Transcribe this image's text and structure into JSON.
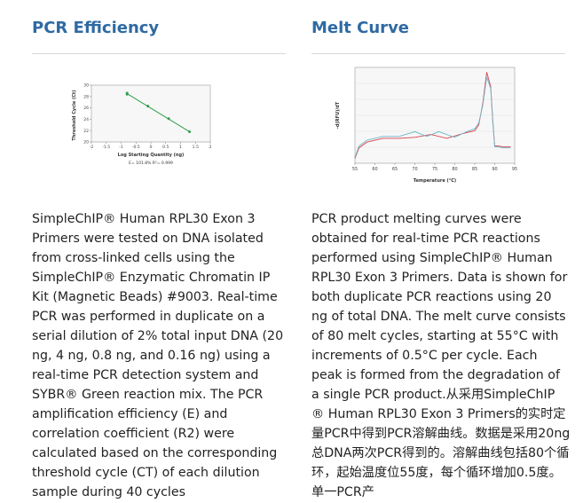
{
  "left": {
    "heading": "PCR Efficiency",
    "body": "SimpleChIP® Human RPL30 Exon 3 Primers were tested on DNA isolated from cross-linked cells using the SimpleChIP® Enzymatic Chromatin IP Kit (Magnetic Beads) #9003. Real-time PCR was performed in duplicate on a serial dilution of 2% total input DNA (20 ng, 4 ng, 0.8 ng, and 0.16 ng) using a real-time PCR detection system and SYBR® Green reaction mix. The PCR amplification efficiency (E) and correlation coefficient (R2) were calculated based on the corresponding threshold cycle (CT) of each dilution sample during 40 cycles"
  },
  "right": {
    "heading": "Melt Curve",
    "body": "PCR product melting curves were obtained for real-time PCR reactions performed using SimpleChIP® Human RPL30 Exon 3 Primers. Data is shown for both duplicate PCR reactions using 20 ng of total DNA. The melt curve consists of 80 melt cycles, starting at 55°C with increments of 0.5°C per cycle. Each peak is formed from the degradation of a single PCR product.从采用SimpleChIP ® Human RPL30 Exon 3 Primers的实时定量PCR中得到PCR溶解曲线。数据是采用20ng总DNA两次PCR得到的。溶解曲线包括80个循环，起始温度位55度，每个循环增加0.5度。单一PCR产"
  },
  "chart_data": [
    {
      "type": "scatter",
      "xlabel": "Log Starting Quantity (ng)",
      "ylabel": "Threshold Cycle (Ct)",
      "annotation": "E= 101.8%   R²= 0.999",
      "xlim": [
        -2,
        2
      ],
      "ylim": [
        20,
        30
      ],
      "xticks": [
        "-2",
        "-1.5",
        "-1",
        "-0.5",
        "0",
        "0.5",
        "1",
        "1.5",
        "2"
      ],
      "yticks": [
        "30",
        "28",
        "26",
        "24",
        "22",
        "20"
      ],
      "points": [
        {
          "x": -0.8,
          "y": 28.6
        },
        {
          "x": -0.8,
          "y": 28.4
        },
        {
          "x": -0.1,
          "y": 26.3
        },
        {
          "x": 0.6,
          "y": 24.1
        },
        {
          "x": 1.3,
          "y": 21.8
        }
      ],
      "trendline": [
        [
          -0.8,
          28.5
        ],
        [
          1.3,
          21.8
        ]
      ],
      "colors": {
        "points": "#2e9e4a",
        "line": "#2e9e4a"
      }
    },
    {
      "type": "line",
      "xlabel": "Temperature (°C)",
      "ylabel": "-d(RFU)/dT",
      "xlim": [
        55,
        95
      ],
      "ylim": [
        0,
        1
      ],
      "xticks": [
        "55",
        "60",
        "65",
        "70",
        "75",
        "80",
        "85",
        "90",
        "95"
      ],
      "series": [
        {
          "color": "#d9434f",
          "points": [
            [
              55,
              0.05
            ],
            [
              56,
              0.16
            ],
            [
              58,
              0.22
            ],
            [
              62,
              0.26
            ],
            [
              66,
              0.26
            ],
            [
              70,
              0.27
            ],
            [
              74,
              0.3
            ],
            [
              78,
              0.26
            ],
            [
              82,
              0.31
            ],
            [
              85,
              0.34
            ],
            [
              86,
              0.4
            ],
            [
              87,
              0.62
            ],
            [
              88,
              0.95
            ],
            [
              89,
              0.8
            ],
            [
              89.5,
              0.45
            ],
            [
              90,
              0.18
            ],
            [
              91,
              0.18
            ],
            [
              92,
              0.17
            ],
            [
              94,
              0.17
            ]
          ]
        },
        {
          "color": "#6fb7c8",
          "points": [
            [
              55,
              0.06
            ],
            [
              56,
              0.18
            ],
            [
              58,
              0.24
            ],
            [
              62,
              0.28
            ],
            [
              66,
              0.28
            ],
            [
              70,
              0.33
            ],
            [
              73,
              0.28
            ],
            [
              76,
              0.33
            ],
            [
              80,
              0.27
            ],
            [
              83,
              0.33
            ],
            [
              85,
              0.36
            ],
            [
              86,
              0.42
            ],
            [
              87,
              0.6
            ],
            [
              88,
              0.9
            ],
            [
              89,
              0.78
            ],
            [
              89.5,
              0.43
            ],
            [
              90,
              0.17
            ],
            [
              91,
              0.17
            ],
            [
              92,
              0.16
            ],
            [
              94,
              0.16
            ]
          ]
        }
      ]
    }
  ]
}
